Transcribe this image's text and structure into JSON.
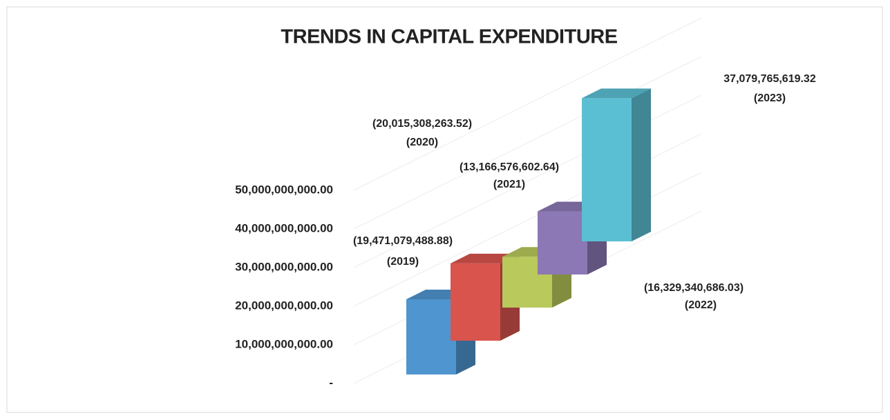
{
  "chart_data": {
    "type": "bar3d",
    "title": "TRENDS IN CAPITAL EXPENDITURE",
    "categories": [
      "(2019)",
      "(2020)",
      "(2021)",
      "(2022)",
      "(2023)"
    ],
    "values": [
      19471079488.88,
      20015308263.52,
      13166576602.64,
      16329340686.03,
      37079765619.32
    ],
    "value_labels": [
      "(19,471,079,488.88)",
      "(20,015,308,263.52)",
      "(13,166,576,602.64)",
      "(16,329,340,686.03)",
      "37,079,765,619.32"
    ],
    "colors": [
      "#4f95cf",
      "#d9544d",
      "#b9c95c",
      "#8b78b4",
      "#5bbfd3"
    ],
    "ylim": [
      0,
      50000000000
    ],
    "yticks": [
      {
        "value": 0,
        "label": "-"
      },
      {
        "value": 10000000000,
        "label": "10,000,000,000.00"
      },
      {
        "value": 20000000000,
        "label": "20,000,000,000.00"
      },
      {
        "value": 30000000000,
        "label": "30,000,000,000.00"
      },
      {
        "value": 40000000000,
        "label": "40,000,000,000.00"
      },
      {
        "value": 50000000000,
        "label": "50,000,000,000.00"
      }
    ],
    "grid": true
  }
}
